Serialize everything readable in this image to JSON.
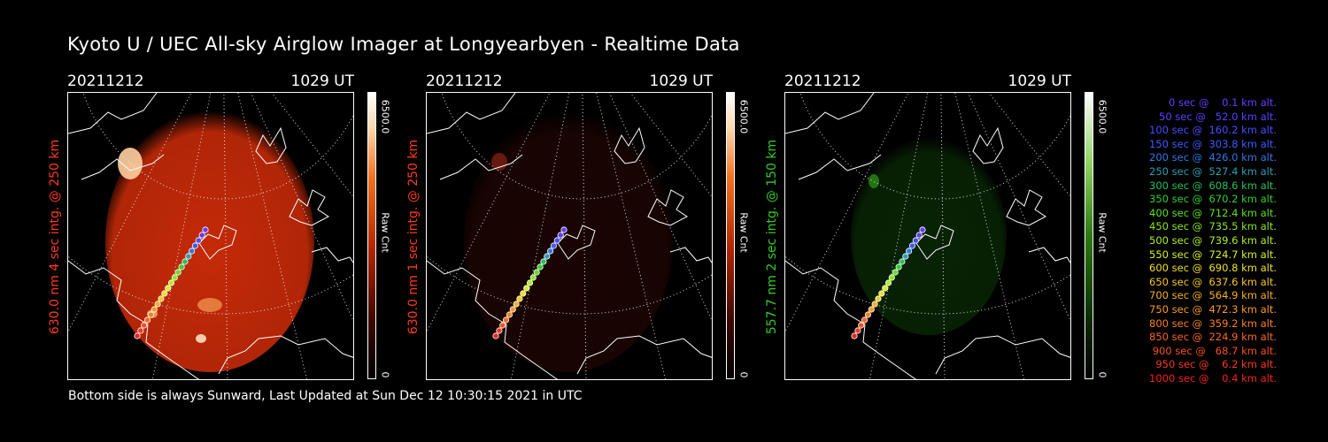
{
  "title": "Kyoto U / UEC All-sky Airglow Imager at Longyearbyen - Realtime Data",
  "footer": "Bottom side is always Sunward, Last Updated at Sun Dec 12 10:30:15 2021 in UTC",
  "panels": [
    {
      "date": "20211212",
      "time": "1029 UT",
      "ylabel": "630.0 nm 4 sec intg. @ 250 km",
      "label_color": "#ff3a1a",
      "cbar_max": "6500.0",
      "cbar_unit": "Raw Cnt",
      "cbar_min": "0",
      "glow": "#c42a08",
      "intensity": 1.0
    },
    {
      "date": "20211212",
      "time": "1029 UT",
      "ylabel": "630.0 nm 1 sec intg. @ 250 km",
      "label_color": "#ff3a1a",
      "cbar_max": "6500.0",
      "cbar_unit": "Raw Cnt",
      "cbar_min": "0",
      "glow": "#3a0a02",
      "intensity": 0.45
    },
    {
      "date": "20211212",
      "time": "1029 UT",
      "ylabel": "557.7 nm 2 sec intg. @ 150 km",
      "label_color": "#33cc22",
      "cbar_max": "6500.0",
      "cbar_unit": "Raw Cnt",
      "cbar_min": "0",
      "glow": "#0d3a08",
      "intensity": 0.6
    }
  ],
  "legend": [
    {
      "text": "0 sec @    0.1 km alt.",
      "color": "#6a3cff"
    },
    {
      "text": "50 sec @   52.0 km alt.",
      "color": "#5a40ff"
    },
    {
      "text": "100 sec @  160.2 km alt.",
      "color": "#4a4cff"
    },
    {
      "text": "150 sec @  303.8 km alt.",
      "color": "#3c5cff"
    },
    {
      "text": "200 sec @  426.0 km alt.",
      "color": "#3078e8"
    },
    {
      "text": "250 sec @  527.4 km alt.",
      "color": "#2aa0b0"
    },
    {
      "text": "300 sec @  608.6 km alt.",
      "color": "#22c060"
    },
    {
      "text": "350 sec @  670.2 km alt.",
      "color": "#30d030"
    },
    {
      "text": "400 sec @  712.4 km alt.",
      "color": "#60e020"
    },
    {
      "text": "450 sec @  735.5 km alt.",
      "color": "#88e820"
    },
    {
      "text": "500 sec @  739.6 km alt.",
      "color": "#b0f020"
    },
    {
      "text": "550 sec @  724.7 km alt.",
      "color": "#d8f020"
    },
    {
      "text": "600 sec @  690.8 km alt.",
      "color": "#f0e020"
    },
    {
      "text": "650 sec @  637.6 km alt.",
      "color": "#f8c820"
    },
    {
      "text": "700 sec @  564.9 km alt.",
      "color": "#f8b020"
    },
    {
      "text": "750 sec @  472.3 km alt.",
      "color": "#f89a20"
    },
    {
      "text": "800 sec @  359.2 km alt.",
      "color": "#f88020"
    },
    {
      "text": "850 sec @  224.9 km alt.",
      "color": "#f86820"
    },
    {
      "text": "900 sec @   68.7 km alt.",
      "color": "#f85020"
    },
    {
      "text": "950 sec @    6.2 km alt.",
      "color": "#f83820"
    },
    {
      "text": "1000 sec @    0.4 km alt.",
      "color": "#f82020"
    }
  ]
}
